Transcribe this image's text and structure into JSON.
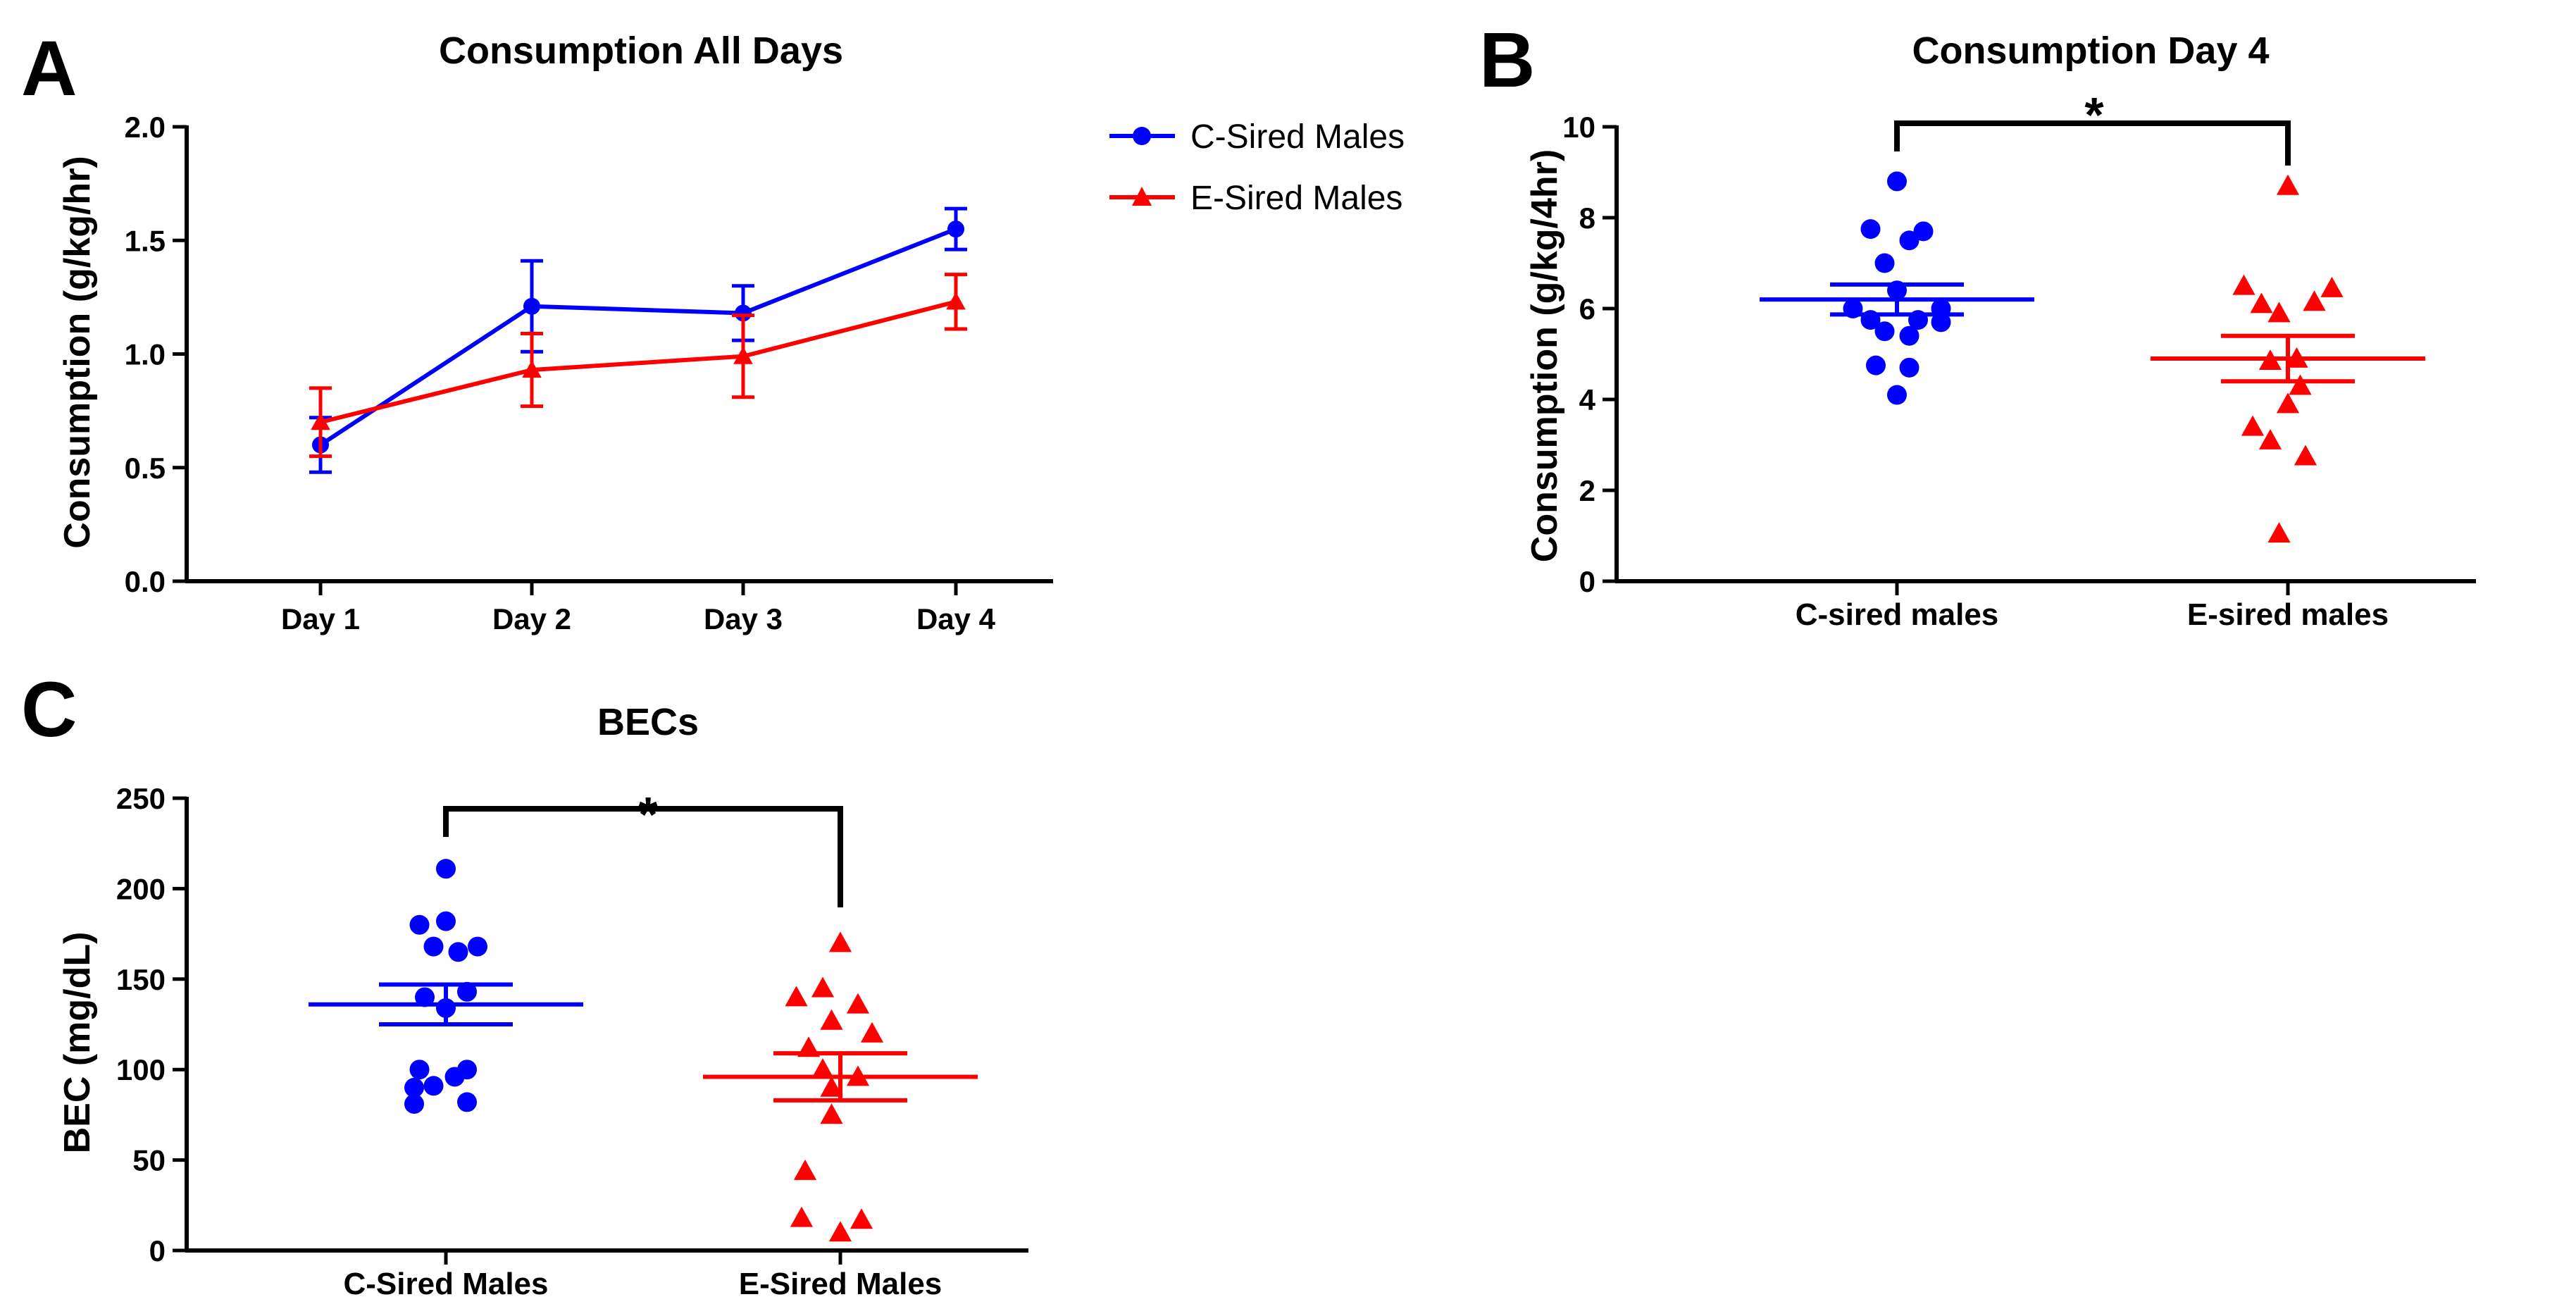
{
  "colors": {
    "blue": "#0000FF",
    "red": "#FF0000",
    "black": "#000000"
  },
  "chart_data": [
    {
      "id": "A",
      "panel_label": "A",
      "type": "line",
      "title": "Consumption All Days",
      "xlabel": "",
      "ylabel": "Consumption (g/kg/hr)",
      "categories": [
        "Day 1",
        "Day 2",
        "Day 3",
        "Day 4"
      ],
      "ylim": [
        0,
        2.0
      ],
      "yticks": [
        0.0,
        0.5,
        1.0,
        1.5,
        2.0
      ],
      "ytick_labels": [
        "0.0",
        "0.5",
        "1.0",
        "1.5",
        "2.0"
      ],
      "legend_position": "right",
      "series": [
        {
          "name": "C-Sired Males",
          "color": "#0000FF",
          "marker": "circle",
          "values": [
            0.6,
            1.21,
            1.18,
            1.55
          ],
          "errors": [
            0.12,
            0.2,
            0.12,
            0.09
          ]
        },
        {
          "name": "E-Sired Males",
          "color": "#FF0000",
          "marker": "triangle",
          "values": [
            0.7,
            0.93,
            0.99,
            1.23
          ],
          "errors": [
            0.15,
            0.16,
            0.18,
            0.12
          ]
        }
      ]
    },
    {
      "id": "B",
      "panel_label": "B",
      "type": "scatter",
      "title": "Consumption Day 4",
      "xlabel": "",
      "ylabel": "Consumption (g/kg/4hr)",
      "categories": [
        "C-sired males",
        "E-sired males"
      ],
      "ylim": [
        0,
        10
      ],
      "yticks": [
        0,
        2,
        4,
        6,
        8,
        10
      ],
      "ytick_labels": [
        "0",
        "2",
        "4",
        "6",
        "8",
        "10"
      ],
      "significance": "*",
      "groups": [
        {
          "name": "C-sired males",
          "color": "#0000FF",
          "marker": "circle",
          "mean": 6.2,
          "sem": 0.33,
          "points": [
            {
              "dx": 0,
              "y": 8.8
            },
            {
              "dx": -0.15,
              "y": 7.75
            },
            {
              "dx": 0.15,
              "y": 7.7
            },
            {
              "dx": 0.07,
              "y": 7.5
            },
            {
              "dx": -0.07,
              "y": 7.0
            },
            {
              "dx": 0.0,
              "y": 6.4
            },
            {
              "dx": -0.25,
              "y": 6.0
            },
            {
              "dx": 0.25,
              "y": 6.0
            },
            {
              "dx": -0.15,
              "y": 5.75
            },
            {
              "dx": 0.12,
              "y": 5.75
            },
            {
              "dx": 0.25,
              "y": 5.7
            },
            {
              "dx": -0.07,
              "y": 5.5
            },
            {
              "dx": 0.07,
              "y": 5.4
            },
            {
              "dx": -0.12,
              "y": 4.75
            },
            {
              "dx": 0.07,
              "y": 4.7
            },
            {
              "dx": 0.0,
              "y": 4.1
            }
          ]
        },
        {
          "name": "E-sired males",
          "color": "#FF0000",
          "marker": "triangle",
          "mean": 4.9,
          "sem": 0.5,
          "points": [
            {
              "dx": 0,
              "y": 8.7
            },
            {
              "dx": -0.25,
              "y": 6.5
            },
            {
              "dx": 0.25,
              "y": 6.45
            },
            {
              "dx": -0.15,
              "y": 6.1
            },
            {
              "dx": 0.15,
              "y": 6.15
            },
            {
              "dx": -0.05,
              "y": 5.9
            },
            {
              "dx": -0.1,
              "y": 4.85
            },
            {
              "dx": 0.05,
              "y": 4.9
            },
            {
              "dx": 0.07,
              "y": 4.3
            },
            {
              "dx": 0.0,
              "y": 3.9
            },
            {
              "dx": -0.2,
              "y": 3.4
            },
            {
              "dx": -0.1,
              "y": 3.1
            },
            {
              "dx": 0.1,
              "y": 2.75
            },
            {
              "dx": -0.05,
              "y": 1.05
            }
          ]
        }
      ]
    },
    {
      "id": "C",
      "panel_label": "C",
      "type": "scatter",
      "title": "BECs",
      "xlabel": "",
      "ylabel": "BEC (mg/dL)",
      "categories": [
        "C-Sired Males",
        "E-Sired Males"
      ],
      "ylim": [
        0,
        250
      ],
      "yticks": [
        0,
        50,
        100,
        150,
        200,
        250
      ],
      "ytick_labels": [
        "0",
        "50",
        "100",
        "150",
        "200",
        "250"
      ],
      "significance": "*",
      "groups": [
        {
          "name": "C-Sired Males",
          "color": "#0000FF",
          "marker": "circle",
          "mean": 136,
          "sem": 11,
          "points": [
            {
              "dx": 0,
              "y": 211
            },
            {
              "dx": -0.15,
              "y": 180
            },
            {
              "dx": 0.0,
              "y": 182
            },
            {
              "dx": -0.07,
              "y": 168
            },
            {
              "dx": 0.07,
              "y": 165
            },
            {
              "dx": 0.18,
              "y": 168
            },
            {
              "dx": -0.12,
              "y": 140
            },
            {
              "dx": 0.12,
              "y": 143
            },
            {
              "dx": 0.0,
              "y": 134
            },
            {
              "dx": -0.15,
              "y": 100
            },
            {
              "dx": 0.12,
              "y": 100
            },
            {
              "dx": 0.05,
              "y": 96
            },
            {
              "dx": -0.07,
              "y": 91
            },
            {
              "dx": -0.18,
              "y": 90
            },
            {
              "dx": -0.18,
              "y": 81
            },
            {
              "dx": 0.12,
              "y": 82
            }
          ]
        },
        {
          "name": "E-Sired Males",
          "color": "#FF0000",
          "marker": "triangle",
          "mean": 96,
          "sem": 13,
          "points": [
            {
              "dx": 0,
              "y": 170
            },
            {
              "dx": -0.1,
              "y": 145
            },
            {
              "dx": -0.25,
              "y": 140
            },
            {
              "dx": 0.1,
              "y": 136
            },
            {
              "dx": -0.05,
              "y": 127
            },
            {
              "dx": 0.18,
              "y": 120
            },
            {
              "dx": -0.18,
              "y": 112
            },
            {
              "dx": -0.1,
              "y": 100
            },
            {
              "dx": 0.1,
              "y": 96
            },
            {
              "dx": -0.05,
              "y": 90
            },
            {
              "dx": -0.05,
              "y": 75
            },
            {
              "dx": -0.2,
              "y": 44
            },
            {
              "dx": -0.22,
              "y": 18
            },
            {
              "dx": 0.12,
              "y": 17
            },
            {
              "dx": 0.0,
              "y": 10
            }
          ]
        }
      ]
    }
  ]
}
